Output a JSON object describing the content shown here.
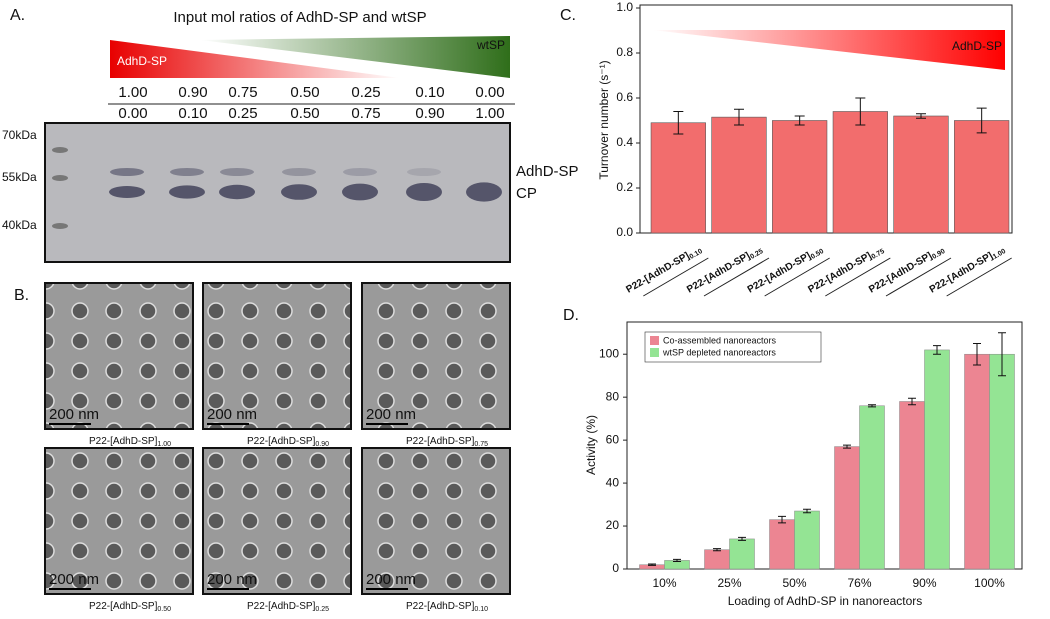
{
  "panel_a": {
    "label": "A.",
    "title": "Input mol ratios of AdhD-SP and wtSP",
    "gradient_left": "AdhD-SP",
    "gradient_right": "wtSP",
    "ratios_adhd": [
      "1.00",
      "0.90",
      "0.75",
      "0.50",
      "0.25",
      "0.10",
      "0.00"
    ],
    "ratios_wtsp": [
      "0.00",
      "0.10",
      "0.25",
      "0.50",
      "0.75",
      "0.90",
      "1.00"
    ],
    "markers": [
      "70kDa",
      "55kDa",
      "40kDa"
    ],
    "bands": [
      "AdhD-SP",
      "CP"
    ]
  },
  "panel_b": {
    "label": "B.",
    "images": [
      {
        "scale": "200 nm",
        "caption": "P22-[AdhD-SP]1.00"
      },
      {
        "scale": "200 nm",
        "caption": "P22-[AdhD-SP]0.90"
      },
      {
        "scale": "200 nm",
        "caption": "P22-[AdhD-SP]0.75"
      },
      {
        "scale": "200 nm",
        "caption": "P22-[AdhD-SP]0.50"
      },
      {
        "scale": "200 nm",
        "caption": "P22-[AdhD-SP]0.25"
      },
      {
        "scale": "200 nm",
        "caption": "P22-[AdhD-SP]0.10"
      }
    ]
  },
  "chart_data": [
    {
      "type": "bar",
      "label": "C.",
      "ylabel": "Turnover number (s⁻¹)",
      "annotation": "AdhD-SP",
      "categories": [
        "P22-[AdhD-SP]0.10",
        "P22-[AdhD-SP]0.25",
        "P22-[AdhD-SP]0.50",
        "P22-[AdhD-SP]0.75",
        "P22-[AdhD-SP]0.90",
        "P22-[AdhD-SP]1.00"
      ],
      "values": [
        0.49,
        0.515,
        0.5,
        0.54,
        0.52,
        0.5
      ],
      "errors": [
        0.05,
        0.035,
        0.02,
        0.06,
        0.01,
        0.055
      ],
      "color": "#f26d6d",
      "ylim": [
        0,
        1
      ],
      "yticks": [
        {
          "value": 0,
          "label": "0.0"
        },
        {
          "value": 0.2,
          "label": "0.2"
        },
        {
          "value": 0.4,
          "label": "0.4"
        },
        {
          "value": 0.6,
          "label": "0.6"
        },
        {
          "value": 0.8,
          "label": "0.8"
        },
        {
          "value": 1,
          "label": "1.0"
        }
      ]
    },
    {
      "type": "grouped_bar",
      "label": "D.",
      "ylabel": "Activity (%)",
      "xlabel": "Loading of AdhD-SP in nanoreactors",
      "categories": [
        "10%",
        "25%",
        "50%",
        "76%",
        "90%",
        "100%"
      ],
      "series": [
        {
          "name": "Co-assembled nanoreactors",
          "color": "#ec8592",
          "values": [
            2,
            9,
            23,
            57,
            78,
            100
          ],
          "errors": [
            0.3,
            0.5,
            1.5,
            0.7,
            1.5,
            5
          ]
        },
        {
          "name": "wtSP depleted nanoreactors",
          "color": "#94e494",
          "values": [
            4,
            14,
            27,
            76,
            102,
            100
          ],
          "errors": [
            0.5,
            0.7,
            0.8,
            0.5,
            2,
            10
          ]
        }
      ],
      "ylim": [
        0,
        115
      ],
      "yticks": [
        0,
        20,
        40,
        60,
        80,
        100
      ],
      "legend": "upper left"
    }
  ]
}
